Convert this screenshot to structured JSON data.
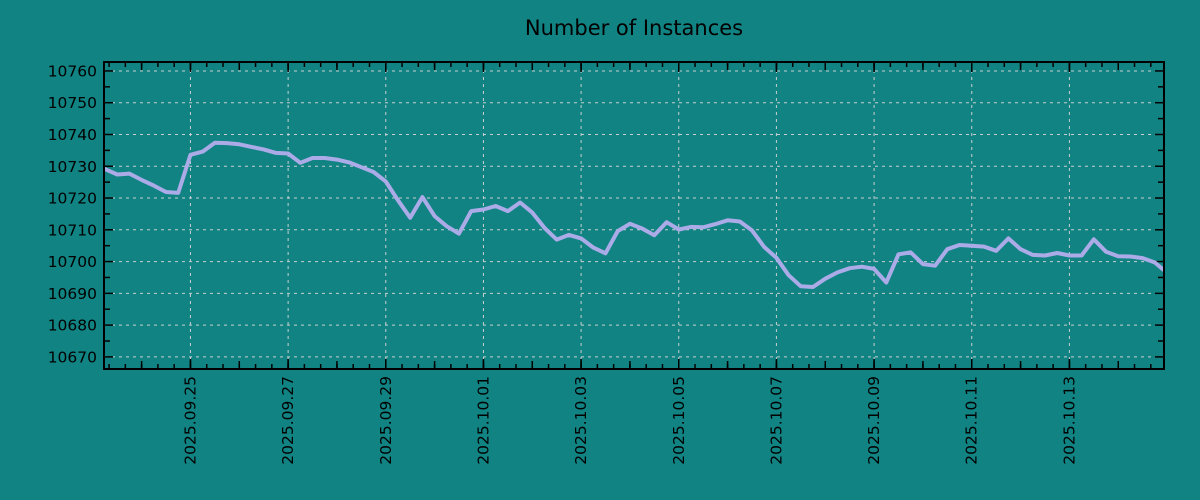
{
  "chart_data": {
    "type": "line",
    "title": "Number of Instances",
    "xlabel": "",
    "ylabel": "",
    "grid": true,
    "legend_position": "none",
    "x_unit": "hours since 2025.09.23 06:00, sampled every 6h",
    "xlim": [
      0,
      520
    ],
    "ylim": [
      10666.5,
      10762.5
    ],
    "y_ticks": [
      10670,
      10680,
      10690,
      10700,
      10710,
      10720,
      10730,
      10740,
      10750,
      10760
    ],
    "y_minor_step": 5,
    "x_ticks_labeled": [
      {
        "t": 42,
        "label": "2025.09.25"
      },
      {
        "t": 90,
        "label": "2025.09.27"
      },
      {
        "t": 138,
        "label": "2025.09.29"
      },
      {
        "t": 186,
        "label": "2025.10.01"
      },
      {
        "t": 234,
        "label": "2025.10.03"
      },
      {
        "t": 282,
        "label": "2025.10.05"
      },
      {
        "t": 330,
        "label": "2025.10.07"
      },
      {
        "t": 378,
        "label": "2025.10.09"
      },
      {
        "t": 426,
        "label": "2025.10.11"
      },
      {
        "t": 474,
        "label": "2025.10.13"
      }
    ],
    "x_day_tick_start": 18,
    "x_day_tick_step": 24,
    "x_minor_tick_start": 2,
    "x_minor_tick_step": 8,
    "colors": {
      "background": "#128383",
      "line": "#ABABE8",
      "grid": "#C6CFCF",
      "frame": "#000000",
      "text": "#000000"
    },
    "series": [
      {
        "name": "instances",
        "points": [
          [
            0,
            10729.1
          ],
          [
            6,
            10727.4
          ],
          [
            12,
            10727.7
          ],
          [
            18,
            10725.7
          ],
          [
            24,
            10723.9
          ],
          [
            30,
            10721.9
          ],
          [
            36,
            10721.6
          ],
          [
            42,
            10733.6
          ],
          [
            48,
            10734.6
          ],
          [
            54,
            10737.4
          ],
          [
            60,
            10737.3
          ],
          [
            66,
            10736.9
          ],
          [
            72,
            10736.1
          ],
          [
            78,
            10735.3
          ],
          [
            84,
            10734.2
          ],
          [
            90,
            10734.0
          ],
          [
            96,
            10731.1
          ],
          [
            102,
            10732.6
          ],
          [
            108,
            10732.6
          ],
          [
            114,
            10732.1
          ],
          [
            120,
            10731.2
          ],
          [
            126,
            10729.7
          ],
          [
            132,
            10728.2
          ],
          [
            138,
            10725.2
          ],
          [
            144,
            10719.3
          ],
          [
            150,
            10713.8
          ],
          [
            156,
            10720.3
          ],
          [
            162,
            10714.3
          ],
          [
            168,
            10711.1
          ],
          [
            174,
            10708.8
          ],
          [
            180,
            10715.9
          ],
          [
            186,
            10716.4
          ],
          [
            192,
            10717.5
          ],
          [
            198,
            10715.9
          ],
          [
            204,
            10718.6
          ],
          [
            210,
            10715.4
          ],
          [
            216,
            10710.6
          ],
          [
            222,
            10706.9
          ],
          [
            228,
            10708.4
          ],
          [
            234,
            10707.3
          ],
          [
            240,
            10704.4
          ],
          [
            246,
            10702.6
          ],
          [
            252,
            10709.6
          ],
          [
            258,
            10711.9
          ],
          [
            264,
            10710.4
          ],
          [
            270,
            10708.3
          ],
          [
            276,
            10712.4
          ],
          [
            282,
            10710.1
          ],
          [
            288,
            10710.9
          ],
          [
            294,
            10710.8
          ],
          [
            300,
            10711.8
          ],
          [
            306,
            10713.0
          ],
          [
            312,
            10712.6
          ],
          [
            318,
            10709.8
          ],
          [
            324,
            10704.6
          ],
          [
            330,
            10701.2
          ],
          [
            336,
            10695.7
          ],
          [
            342,
            10692.2
          ],
          [
            348,
            10692.0
          ],
          [
            354,
            10694.6
          ],
          [
            360,
            10696.6
          ],
          [
            366,
            10697.9
          ],
          [
            372,
            10698.4
          ],
          [
            378,
            10697.7
          ],
          [
            384,
            10693.4
          ],
          [
            390,
            10702.3
          ],
          [
            396,
            10702.9
          ],
          [
            402,
            10699.2
          ],
          [
            408,
            10698.7
          ],
          [
            414,
            10703.9
          ],
          [
            420,
            10705.2
          ],
          [
            426,
            10705.0
          ],
          [
            432,
            10704.7
          ],
          [
            438,
            10703.4
          ],
          [
            444,
            10707.3
          ],
          [
            450,
            10703.9
          ],
          [
            456,
            10702.1
          ],
          [
            462,
            10701.9
          ],
          [
            468,
            10702.7
          ],
          [
            474,
            10701.9
          ],
          [
            480,
            10701.9
          ],
          [
            486,
            10707.0
          ],
          [
            492,
            10703.1
          ],
          [
            498,
            10701.7
          ],
          [
            504,
            10701.6
          ],
          [
            510,
            10701.1
          ],
          [
            516,
            10699.7
          ],
          [
            520,
            10697.5
          ]
        ]
      }
    ]
  }
}
